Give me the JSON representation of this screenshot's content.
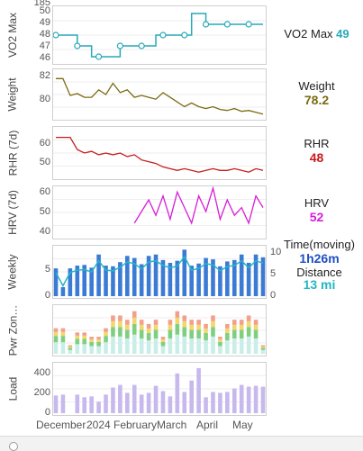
{
  "panels": [
    {
      "id": "vo2",
      "ylabel": "VO2 Max",
      "ticks": [
        "50",
        "49",
        "48",
        "47",
        "46"
      ],
      "legend_name": "VO2 Max",
      "legend_value": "49",
      "color": "#26a9b8"
    },
    {
      "id": "weight",
      "ylabel": "Weight",
      "ticks": [
        "82",
        "80"
      ],
      "legend_name": "Weight",
      "legend_value": "78.2",
      "color": "#7a6b12"
    },
    {
      "id": "rhr",
      "ylabel": "RHR (7d)",
      "ticks": [
        "60",
        "50"
      ],
      "legend_name": "RHR",
      "legend_value": "48",
      "color": "#c81c1c"
    },
    {
      "id": "hrv",
      "ylabel": "HRV (7d)",
      "ticks": [
        "60",
        "50",
        "40"
      ],
      "legend_name": "HRV",
      "legend_value": "52",
      "color": "#d61fd6"
    },
    {
      "id": "weekly",
      "ylabel": "Weekly",
      "ticks": [
        "5",
        "0"
      ],
      "right_ticks": [
        "10",
        "5",
        "0"
      ],
      "legend_name": "Time(moving)",
      "legend_value": "1h26m",
      "legend_name2": "Distance",
      "legend_value2": "13 mi",
      "color": "#1e4fc4",
      "color2": "#23b6c4"
    },
    {
      "id": "pwr",
      "ylabel": "Pwr Zon…",
      "ticks": [],
      "legend_name": "",
      "legend_value": ""
    },
    {
      "id": "load",
      "ylabel": "Load",
      "ticks": [
        "400",
        "200",
        "0"
      ],
      "legend_name": "",
      "legend_value": ""
    }
  ],
  "top_tick": "185",
  "x_labels": [
    "December",
    "2024",
    "February",
    "March",
    "April",
    "May"
  ],
  "chart_data": [
    {
      "type": "line",
      "name": "VO2 Max",
      "y": [
        48,
        48,
        48,
        47,
        47,
        46,
        46,
        46,
        46,
        47,
        47,
        47,
        47,
        47,
        48,
        48,
        48,
        48,
        48,
        50,
        50,
        49,
        49,
        49,
        49,
        49,
        49,
        49,
        49,
        49
      ],
      "ylim": [
        45.5,
        50.5
      ]
    },
    {
      "type": "line",
      "name": "Weight",
      "y": [
        82,
        82,
        80.2,
        80.4,
        80,
        80,
        80.8,
        80.3,
        81.5,
        80.5,
        80.8,
        80,
        80.2,
        80,
        79.8,
        80.5,
        80,
        79.5,
        79,
        79.4,
        79,
        78.8,
        79,
        78.7,
        78.6,
        78.8,
        78.5,
        78.6,
        78.4,
        78.2
      ],
      "ylim": [
        77.8,
        82.8
      ]
    },
    {
      "type": "line",
      "name": "RHR",
      "y": [
        67,
        67,
        67,
        60,
        58,
        59,
        57,
        58,
        57,
        58,
        56,
        57,
        54,
        53,
        52,
        50,
        49,
        48,
        49,
        48,
        47,
        48,
        49,
        48,
        48,
        49,
        48,
        47,
        49,
        48
      ],
      "ylim": [
        44,
        72
      ]
    },
    {
      "type": "line",
      "name": "HRV",
      "y": [
        null,
        null,
        null,
        null,
        null,
        null,
        null,
        null,
        null,
        null,
        null,
        44,
        50,
        56,
        48,
        58,
        46,
        60,
        52,
        44,
        58,
        50,
        62,
        46,
        56,
        48,
        52,
        44,
        58,
        52
      ],
      "ylim": [
        37,
        62
      ]
    },
    {
      "type": "bar",
      "name": "Weekly",
      "values": [
        4,
        1.3,
        4,
        4.4,
        4.5,
        4.1,
        6,
        4.4,
        4.3,
        4.9,
        5.8,
        5.5,
        4.6,
        5.8,
        6,
        5.2,
        4.8,
        5.1,
        6.7,
        4.4,
        4.7,
        5.5,
        5.3,
        4.3,
        5,
        5.2,
        6,
        4.8,
        6,
        5.6
      ],
      "ylim": [
        0,
        7
      ]
    },
    {
      "type": "bar",
      "name": "Pwr Zones",
      "values": [
        6,
        6,
        2,
        5,
        5,
        4,
        4,
        6,
        9,
        9,
        8,
        10,
        8,
        7,
        8,
        4,
        8,
        10,
        9,
        8,
        8,
        7,
        9,
        4,
        7,
        8,
        8,
        9,
        8,
        2
      ],
      "ylim": [
        0,
        11
      ]
    },
    {
      "type": "bar",
      "name": "Load",
      "values": [
        200,
        210,
        0,
        210,
        180,
        190,
        130,
        210,
        290,
        320,
        230,
        320,
        210,
        230,
        310,
        250,
        190,
        450,
        240,
        370,
        510,
        180,
        240,
        230,
        240,
        280,
        320,
        300,
        310,
        300
      ],
      "ylim": [
        0,
        550
      ]
    }
  ]
}
